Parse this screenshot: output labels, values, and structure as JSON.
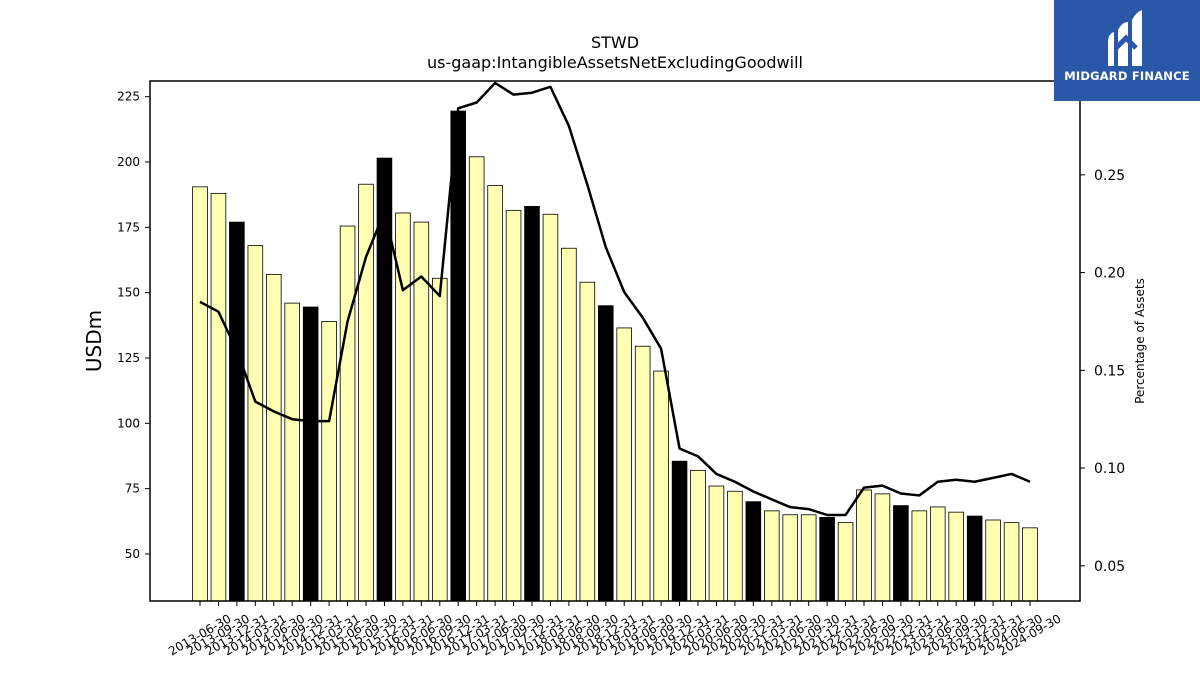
{
  "chart_data": {
    "type": "bar",
    "title": "STWD",
    "subtitle": "us-gaap:IntangibleAssetsNetExcludingGoodwill",
    "ylabel": "USDm",
    "ylabel_right": "Percentage of Assets",
    "ylim": [
      32,
      231
    ],
    "y_ticks": [
      50,
      75,
      100,
      125,
      150,
      175,
      200,
      225
    ],
    "ylim_right": [
      0.032,
      0.298
    ],
    "y_ticks_right": [
      "0.05",
      "0.10",
      "0.15",
      "0.20",
      "0.25"
    ],
    "y_tick_values_right": [
      0.05,
      0.1,
      0.15,
      0.2,
      0.25
    ],
    "grid": false,
    "colors": {
      "bar": "#ffffb3",
      "bar_highlight": "#000000",
      "line": "#000000",
      "edge": "#000000"
    },
    "categories": [
      "2013-06-30",
      "2013-09-30",
      "2013-12-31",
      "2014-03-31",
      "2014-06-30",
      "2014-09-30",
      "2014-12-31",
      "2015-03-31",
      "2015-06-30",
      "2015-09-30",
      "2015-12-31",
      "2016-03-31",
      "2016-06-30",
      "2016-09-30",
      "2016-12-31",
      "2017-03-31",
      "2017-06-30",
      "2017-09-30",
      "2017-12-31",
      "2018-03-31",
      "2018-06-30",
      "2018-09-30",
      "2018-12-31",
      "2019-03-31",
      "2019-06-30",
      "2019-09-30",
      "2019-12-31",
      "2020-03-31",
      "2020-06-30",
      "2020-09-30",
      "2020-12-31",
      "2021-03-31",
      "2021-06-30",
      "2021-09-30",
      "2021-12-31",
      "2022-03-31",
      "2022-06-30",
      "2022-09-30",
      "2022-12-31",
      "2023-03-31",
      "2023-06-30",
      "2023-09-30",
      "2023-12-31",
      "2024-03-31",
      "2024-06-30",
      "2024-09-30"
    ],
    "series": [
      {
        "kind": "bar",
        "values": [
          190.5,
          188,
          177,
          168,
          157,
          146,
          144.5,
          139,
          175.5,
          191.5,
          201.5,
          180.5,
          177,
          155.5,
          219.5,
          202,
          191,
          181.5,
          183,
          180,
          167,
          154,
          145,
          136.5,
          129.5,
          120,
          85.5,
          82,
          76,
          74,
          70,
          66.5,
          65,
          65,
          64,
          62,
          74.5,
          73,
          68.5,
          66.5,
          68,
          66,
          64.5,
          63,
          62,
          60
        ],
        "highlight": [
          false,
          false,
          true,
          false,
          false,
          false,
          true,
          false,
          false,
          false,
          true,
          false,
          false,
          false,
          true,
          false,
          false,
          false,
          true,
          false,
          false,
          false,
          true,
          false,
          false,
          false,
          true,
          false,
          false,
          false,
          true,
          false,
          false,
          false,
          true,
          false,
          false,
          false,
          true,
          false,
          false,
          false,
          true,
          false,
          false,
          false
        ]
      },
      {
        "kind": "line",
        "axis": "right",
        "values": [
          0.185,
          0.18,
          0.16,
          0.134,
          0.129,
          0.125,
          0.124,
          0.124,
          0.175,
          0.208,
          0.231,
          0.191,
          0.198,
          0.188,
          0.284,
          0.287,
          0.297,
          0.291,
          0.292,
          0.295,
          0.275,
          0.245,
          0.213,
          0.19,
          0.177,
          0.161,
          0.11,
          0.106,
          0.097,
          0.093,
          0.088,
          0.084,
          0.08,
          0.079,
          0.076,
          0.076,
          0.09,
          0.091,
          0.087,
          0.086,
          0.093,
          0.094,
          0.093,
          0.095,
          0.097,
          0.093
        ]
      }
    ]
  },
  "logo": {
    "text": "MIDGARD FINANCE"
  }
}
